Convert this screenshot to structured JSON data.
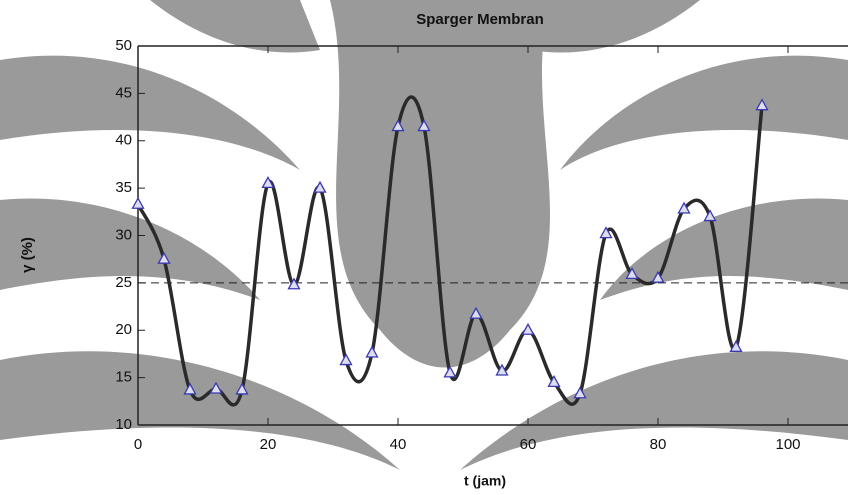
{
  "chart_data": {
    "type": "line",
    "title": "Sparger Membran",
    "xlabel": "t (jam)",
    "ylabel": "γ (%)",
    "series": [
      {
        "color": "#2a2a2a",
        "marker_color": "#3a3ab0",
        "x": [
          0,
          4,
          8,
          12,
          16,
          20,
          24,
          28,
          32,
          36,
          40,
          44,
          48,
          52,
          56,
          60,
          64,
          68,
          72,
          76,
          80,
          84,
          88,
          92,
          96
        ],
        "values": [
          33.3,
          27.5,
          13.7,
          13.8,
          13.7,
          35.5,
          24.8,
          35.0,
          16.8,
          17.6,
          41.5,
          41.5,
          15.5,
          21.7,
          15.7,
          20.0,
          14.5,
          13.3,
          30.2,
          25.9,
          25.5,
          32.8,
          32.0,
          18.2,
          43.7
        ]
      }
    ],
    "reference_line": 25,
    "xlim": [
      0,
      108
    ],
    "xticks": [
      0,
      20,
      40,
      60,
      80,
      100
    ],
    "ylim": [
      10,
      50
    ],
    "yticks": [
      10,
      15,
      20,
      25,
      30,
      35,
      40,
      45,
      50
    ]
  }
}
